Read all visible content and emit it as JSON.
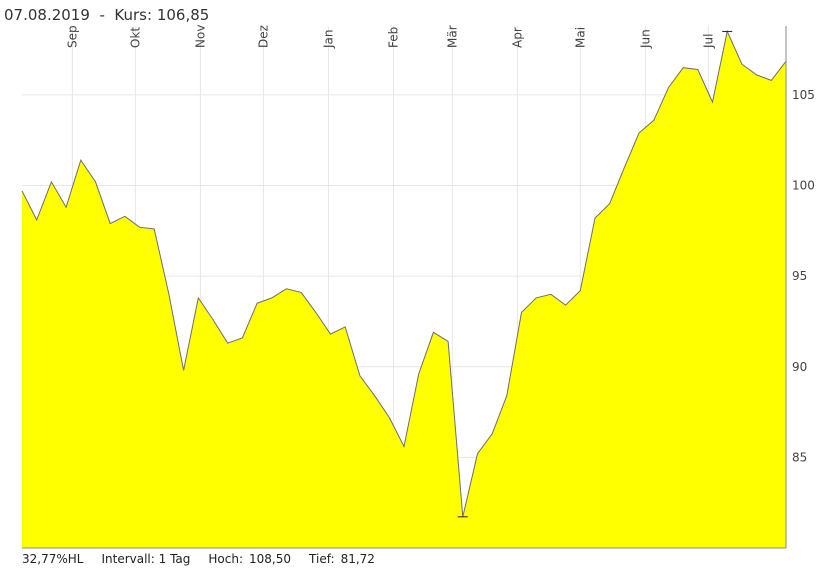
{
  "header": {
    "date": "07.08.2019",
    "separator": "-",
    "price_label": "Kurs:",
    "price_value": "106,85"
  },
  "footer": {
    "range_text": "32,77%HL",
    "interval_label": "Intervall:",
    "interval_value": "1 Tag",
    "high_label": "Hoch:",
    "high_value": "108,50",
    "low_label": "Tief:",
    "low_value": "81,72"
  },
  "colors": {
    "fill": "#ffff00",
    "line": "#6e6e6e",
    "grid": "#e6e6e6",
    "axis": "#888888"
  },
  "chart_data": {
    "type": "area",
    "title": "",
    "xlabel": "",
    "ylabel": "",
    "x_tick_labels": [
      "Sep",
      "Okt",
      "Nov",
      "Dez",
      "Jan",
      "Feb",
      "Mär",
      "Apr",
      "Mai",
      "Jun",
      "Jul"
    ],
    "y_ticks": [
      85,
      90,
      95,
      100,
      105
    ],
    "ylim": [
      80,
      108.8
    ],
    "grid": true,
    "high_marker": 108.5,
    "low_marker": 81.72,
    "x_start": "2018-08-08",
    "x_end": "2019-08-07",
    "x": [
      "2018-08-08",
      "2018-08-15",
      "2018-08-22",
      "2018-08-29",
      "2018-09-05",
      "2018-09-12",
      "2018-09-19",
      "2018-09-26",
      "2018-10-03",
      "2018-10-10",
      "2018-10-17",
      "2018-10-24",
      "2018-10-31",
      "2018-11-07",
      "2018-11-14",
      "2018-11-21",
      "2018-11-28",
      "2018-12-05",
      "2018-12-12",
      "2018-12-19",
      "2018-12-26",
      "2019-01-02",
      "2019-01-09",
      "2019-01-16",
      "2019-01-23",
      "2019-01-30",
      "2019-02-06",
      "2019-02-13",
      "2019-02-20",
      "2019-02-27",
      "2019-03-06",
      "2019-03-13",
      "2019-03-20",
      "2019-03-27",
      "2019-04-03",
      "2019-04-10",
      "2019-04-17",
      "2019-04-24",
      "2019-05-01",
      "2019-05-08",
      "2019-05-15",
      "2019-05-22",
      "2019-05-29",
      "2019-06-05",
      "2019-06-12",
      "2019-06-19",
      "2019-06-26",
      "2019-07-03",
      "2019-07-10",
      "2019-07-17",
      "2019-07-24",
      "2019-07-31",
      "2019-08-07"
    ],
    "values": [
      99.7,
      98.1,
      100.2,
      98.8,
      101.4,
      100.2,
      97.9,
      98.3,
      97.7,
      97.6,
      94.0,
      89.8,
      93.8,
      92.6,
      91.3,
      91.6,
      93.5,
      93.8,
      94.3,
      94.1,
      93.0,
      91.8,
      92.2,
      89.5,
      88.4,
      87.2,
      85.6,
      89.6,
      91.9,
      91.4,
      81.72,
      85.2,
      86.3,
      88.4,
      93.0,
      93.8,
      94.0,
      93.4,
      94.2,
      98.2,
      99.0,
      101.0,
      102.9,
      103.6,
      105.4,
      106.5,
      106.4,
      104.6,
      108.5,
      106.7,
      106.1,
      105.8,
      106.85
    ]
  }
}
